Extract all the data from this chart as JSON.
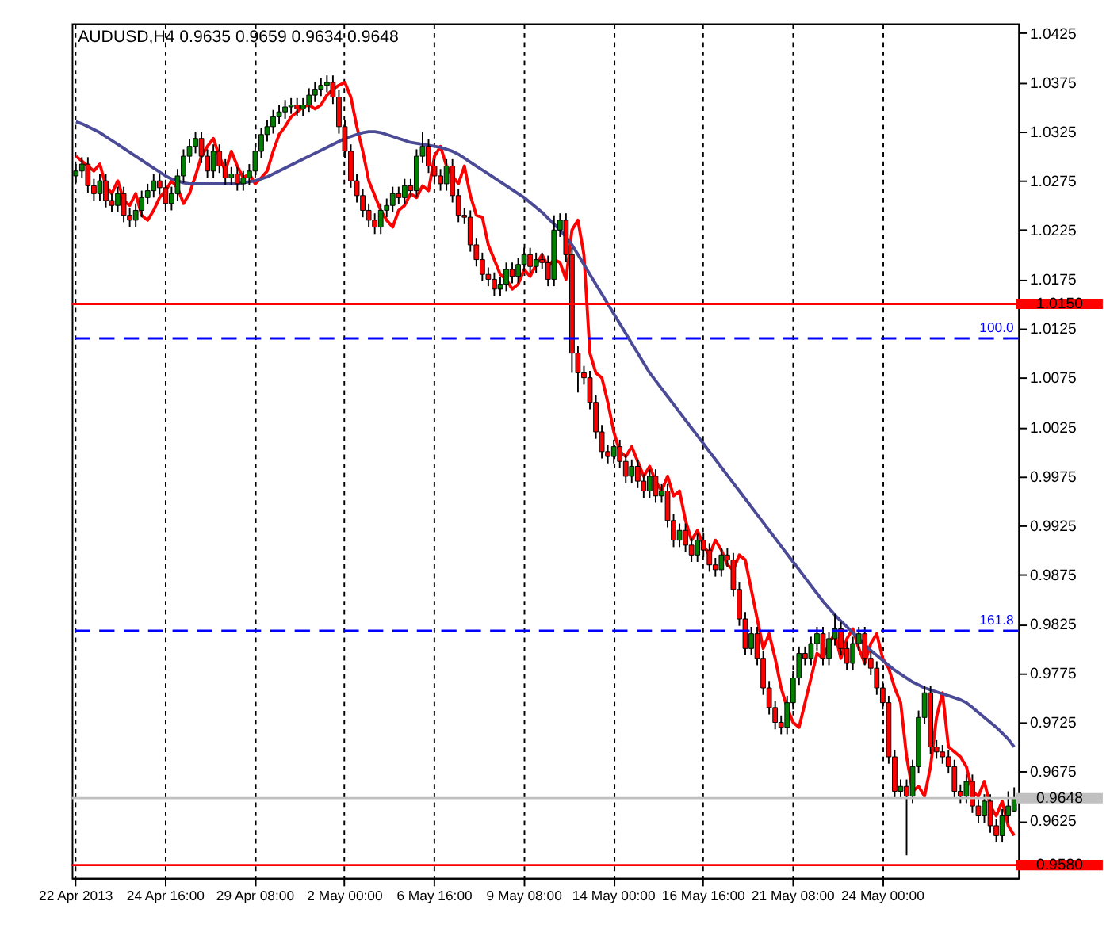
{
  "chart_data": {
    "type": "candlestick",
    "title": "AUDUSD,H4 0.9635 0.9659 0.9634 0.9648",
    "categories": [
      "22 Apr 2013",
      null,
      null,
      null,
      null,
      null,
      null,
      null,
      null,
      null,
      null,
      null,
      null,
      null,
      null,
      "24 Apr 16:00",
      null,
      null,
      null,
      null,
      null,
      null,
      null,
      null,
      null,
      null,
      null,
      null,
      null,
      null,
      "29 Apr 08:00",
      null,
      null,
      null,
      null,
      null,
      null,
      null,
      null,
      null,
      null,
      null,
      null,
      null,
      null,
      "2 May 00:00",
      null,
      null,
      null,
      null,
      null,
      null,
      null,
      null,
      null,
      null,
      null,
      null,
      null,
      null,
      "6 May 16:00",
      null,
      null,
      null,
      null,
      null,
      null,
      null,
      null,
      null,
      null,
      null,
      null,
      null,
      null,
      "9 May 08:00",
      null,
      null,
      null,
      null,
      null,
      null,
      null,
      null,
      null,
      null,
      null,
      null,
      null,
      null,
      "14 May 00:00",
      null,
      null,
      null,
      null,
      null,
      null,
      null,
      null,
      null,
      null,
      null,
      null,
      null,
      null,
      "16 May 16:00",
      null,
      null,
      null,
      null,
      null,
      null,
      null,
      null,
      null,
      null,
      null,
      null,
      null,
      null,
      "21 May 08:00",
      null,
      null,
      null,
      null,
      null,
      null,
      null,
      null,
      null,
      null,
      null,
      null,
      null,
      null,
      "24 May 00:00",
      null,
      null,
      null,
      null,
      null,
      null,
      null,
      null,
      null,
      null,
      null,
      null,
      null,
      null,
      null,
      null,
      null,
      null,
      null,
      null,
      null,
      null
    ],
    "ohlc": [
      [
        1.028,
        1.0292,
        1.0273,
        1.0285
      ],
      [
        1.0285,
        1.0299,
        1.0278,
        1.0292
      ],
      [
        1.0292,
        1.0299,
        1.0263,
        1.027
      ],
      [
        1.027,
        1.0277,
        1.0255,
        1.0262
      ],
      [
        1.0262,
        1.0282,
        1.0255,
        1.0275
      ],
      [
        1.0275,
        1.0282,
        1.0248,
        1.0255
      ],
      [
        1.0255,
        1.0262,
        1.0243,
        1.025
      ],
      [
        1.025,
        1.0269,
        1.0243,
        1.0262
      ],
      [
        1.0262,
        1.0269,
        1.0233,
        1.024
      ],
      [
        1.024,
        1.0247,
        1.0228,
        1.0235
      ],
      [
        1.0235,
        1.0252,
        1.0228,
        1.0245
      ],
      [
        1.0245,
        1.0265,
        1.0238,
        1.0258
      ],
      [
        1.0258,
        1.0272,
        1.0251,
        1.0265
      ],
      [
        1.0265,
        1.0282,
        1.0258,
        1.0275
      ],
      [
        1.0275,
        1.0282,
        1.0261,
        1.0268
      ],
      [
        1.0268,
        1.0275,
        1.0245,
        1.0252
      ],
      [
        1.0252,
        1.0269,
        1.0245,
        1.0262
      ],
      [
        1.0262,
        1.0287,
        1.0255,
        1.028
      ],
      [
        1.028,
        1.0307,
        1.0273,
        1.03
      ],
      [
        1.03,
        1.0317,
        1.0293,
        1.031
      ],
      [
        1.031,
        1.0325,
        1.0303,
        1.0318
      ],
      [
        1.0318,
        1.0325,
        1.0293,
        1.03
      ],
      [
        1.03,
        1.0307,
        1.0278,
        1.0285
      ],
      [
        1.0285,
        1.0312,
        1.0278,
        1.0305
      ],
      [
        1.0305,
        1.0312,
        1.0283,
        1.029
      ],
      [
        1.029,
        1.0297,
        1.0271,
        1.0278
      ],
      [
        1.0278,
        1.0289,
        1.0271,
        1.0282
      ],
      [
        1.0282,
        1.0289,
        1.0265,
        1.0272
      ],
      [
        1.0272,
        1.0285,
        1.0265,
        1.0278
      ],
      [
        1.0278,
        1.0292,
        1.0271,
        1.0285
      ],
      [
        1.0285,
        1.0312,
        1.0278,
        1.0305
      ],
      [
        1.0305,
        1.0329,
        1.0298,
        1.0322
      ],
      [
        1.0322,
        1.0337,
        1.0315,
        1.033
      ],
      [
        1.033,
        1.0347,
        1.0323,
        1.034
      ],
      [
        1.034,
        1.0352,
        1.0333,
        1.0345
      ],
      [
        1.0345,
        1.0357,
        1.0338,
        1.035
      ],
      [
        1.035,
        1.0359,
        1.0343,
        1.0352
      ],
      [
        1.0352,
        1.0359,
        1.0341,
        1.0348
      ],
      [
        1.0348,
        1.0359,
        1.0341,
        1.0352
      ],
      [
        1.0352,
        1.0369,
        1.0345,
        1.0362
      ],
      [
        1.0362,
        1.0375,
        1.0355,
        1.0368
      ],
      [
        1.0368,
        1.0379,
        1.0361,
        1.0372
      ],
      [
        1.0372,
        1.0382,
        1.0365,
        1.0375
      ],
      [
        1.0375,
        1.0382,
        1.0353,
        1.036
      ],
      [
        1.036,
        1.0367,
        1.0323,
        1.033
      ],
      [
        1.033,
        1.0337,
        1.0298,
        1.0305
      ],
      [
        1.0305,
        1.0312,
        1.0268,
        1.0275
      ],
      [
        1.0275,
        1.0282,
        1.0253,
        1.026
      ],
      [
        1.026,
        1.0267,
        1.0238,
        1.0245
      ],
      [
        1.0245,
        1.0252,
        1.0228,
        1.0235
      ],
      [
        1.0235,
        1.0242,
        1.0221,
        1.0228
      ],
      [
        1.0228,
        1.0252,
        1.0221,
        1.0245
      ],
      [
        1.0245,
        1.0257,
        1.0238,
        1.025
      ],
      [
        1.025,
        1.0269,
        1.0243,
        1.0262
      ],
      [
        1.0262,
        1.0269,
        1.0251,
        1.0258
      ],
      [
        1.0258,
        1.0277,
        1.0251,
        1.027
      ],
      [
        1.027,
        1.0277,
        1.0258,
        1.0265
      ],
      [
        1.0265,
        1.0307,
        1.0258,
        1.03
      ],
      [
        1.03,
        1.0325,
        1.0293,
        1.031
      ],
      [
        1.031,
        1.0317,
        1.0283,
        1.029
      ],
      [
        1.029,
        1.0297,
        1.0273,
        1.028
      ],
      [
        1.028,
        1.0287,
        1.0265,
        1.0272
      ],
      [
        1.0272,
        1.0297,
        1.0265,
        1.029
      ],
      [
        1.029,
        1.0297,
        1.0253,
        1.026
      ],
      [
        1.026,
        1.0267,
        1.0233,
        1.024
      ],
      [
        1.024,
        1.0247,
        1.0231,
        1.0238
      ],
      [
        1.0238,
        1.0245,
        1.0203,
        1.021
      ],
      [
        1.021,
        1.0217,
        1.0188,
        1.0195
      ],
      [
        1.0195,
        1.0202,
        1.0173,
        1.018
      ],
      [
        1.018,
        1.0187,
        1.0168,
        1.0175
      ],
      [
        1.0175,
        1.0182,
        1.0158,
        1.0165
      ],
      [
        1.0165,
        1.0177,
        1.0158,
        1.017
      ],
      [
        1.017,
        1.0192,
        1.0163,
        1.0185
      ],
      [
        1.0185,
        1.0192,
        1.0171,
        1.0178
      ],
      [
        1.0178,
        1.0197,
        1.0171,
        1.019
      ],
      [
        1.019,
        1.0207,
        1.0183,
        1.02
      ],
      [
        1.02,
        1.0207,
        1.0181,
        1.0188
      ],
      [
        1.0188,
        1.0202,
        1.0181,
        1.0195
      ],
      [
        1.0195,
        1.0202,
        1.0185,
        1.0192
      ],
      [
        1.0192,
        1.0199,
        1.0168,
        1.0175
      ],
      [
        1.0175,
        1.024,
        1.0168,
        1.0225
      ],
      [
        1.0225,
        1.0242,
        1.0218,
        1.0235
      ],
      [
        1.0235,
        1.0242,
        1.0193,
        1.02
      ],
      [
        1.02,
        1.0207,
        1.008,
        1.01
      ],
      [
        1.01,
        1.0107,
        1.006,
        1.008
      ],
      [
        1.008,
        1.0087,
        1.0068,
        1.0075
      ],
      [
        1.0075,
        1.0082,
        1.0043,
        1.005
      ],
      [
        1.005,
        1.0057,
        1.0013,
        1.002
      ],
      [
        1.002,
        1.0027,
        0.9993,
        1.0
      ],
      [
        1.0,
        1.0007,
        0.9988,
        0.9995
      ],
      [
        0.9995,
        1.0012,
        0.9988,
        1.0005
      ],
      [
        1.0005,
        1.0012,
        0.9983,
        0.999
      ],
      [
        0.999,
        0.9997,
        0.9968,
        0.9975
      ],
      [
        0.9975,
        0.9992,
        0.9968,
        0.9985
      ],
      [
        0.9985,
        0.9992,
        0.9963,
        0.997
      ],
      [
        0.997,
        0.9977,
        0.9953,
        0.996
      ],
      [
        0.996,
        0.9982,
        0.9953,
        0.9975
      ],
      [
        0.9975,
        0.9982,
        0.9948,
        0.9955
      ],
      [
        0.9955,
        0.9967,
        0.9948,
        0.996
      ],
      [
        0.996,
        0.9967,
        0.9923,
        0.993
      ],
      [
        0.993,
        0.9937,
        0.9903,
        0.991
      ],
      [
        0.991,
        0.9927,
        0.9903,
        0.992
      ],
      [
        0.992,
        0.9927,
        0.9898,
        0.9905
      ],
      [
        0.9905,
        0.9912,
        0.9888,
        0.9895
      ],
      [
        0.9895,
        0.9917,
        0.9888,
        0.991
      ],
      [
        0.991,
        0.9917,
        0.9893,
        0.99
      ],
      [
        0.99,
        0.9907,
        0.9878,
        0.9885
      ],
      [
        0.9885,
        0.9892,
        0.9873,
        0.988
      ],
      [
        0.988,
        0.9902,
        0.9873,
        0.9895
      ],
      [
        0.9895,
        0.9902,
        0.9883,
        0.989
      ],
      [
        0.989,
        0.9897,
        0.9853,
        0.986
      ],
      [
        0.986,
        0.9867,
        0.9823,
        0.983
      ],
      [
        0.983,
        0.9837,
        0.9793,
        0.98
      ],
      [
        0.98,
        0.9822,
        0.9793,
        0.9815
      ],
      [
        0.9815,
        0.9822,
        0.9783,
        0.979
      ],
      [
        0.979,
        0.9797,
        0.9753,
        0.976
      ],
      [
        0.976,
        0.9767,
        0.9733,
        0.974
      ],
      [
        0.974,
        0.9747,
        0.9718,
        0.9725
      ],
      [
        0.9725,
        0.9732,
        0.9713,
        0.972
      ],
      [
        0.972,
        0.9752,
        0.9713,
        0.9745
      ],
      [
        0.9745,
        0.9777,
        0.9738,
        0.977
      ],
      [
        0.977,
        0.9802,
        0.9763,
        0.9795
      ],
      [
        0.9795,
        0.9802,
        0.9783,
        0.979
      ],
      [
        0.979,
        0.9812,
        0.9783,
        0.9805
      ],
      [
        0.9805,
        0.9822,
        0.9798,
        0.9815
      ],
      [
        0.9815,
        0.9822,
        0.9783,
        0.979
      ],
      [
        0.979,
        0.9817,
        0.9783,
        0.981
      ],
      [
        0.981,
        0.9835,
        0.9803,
        0.982
      ],
      [
        0.982,
        0.9827,
        0.9793,
        0.98
      ],
      [
        0.98,
        0.9807,
        0.9778,
        0.9785
      ],
      [
        0.9785,
        0.9812,
        0.9778,
        0.9805
      ],
      [
        0.9805,
        0.9822,
        0.9798,
        0.9815
      ],
      [
        0.9815,
        0.9822,
        0.9783,
        0.979
      ],
      [
        0.979,
        0.9797,
        0.9773,
        0.978
      ],
      [
        0.978,
        0.9787,
        0.9753,
        0.976
      ],
      [
        0.976,
        0.9767,
        0.9738,
        0.9745
      ],
      [
        0.9745,
        0.9752,
        0.9683,
        0.969
      ],
      [
        0.969,
        0.9697,
        0.9648,
        0.9655
      ],
      [
        0.9655,
        0.9667,
        0.9648,
        0.966
      ],
      [
        0.966,
        0.9667,
        0.959,
        0.965
      ],
      [
        0.965,
        0.9687,
        0.9643,
        0.968
      ],
      [
        0.968,
        0.9737,
        0.9673,
        0.973
      ],
      [
        0.973,
        0.9762,
        0.9723,
        0.9755
      ],
      [
        0.9755,
        0.9762,
        0.9693,
        0.97
      ],
      [
        0.97,
        0.9707,
        0.9688,
        0.9695
      ],
      [
        0.9695,
        0.9702,
        0.9683,
        0.969
      ],
      [
        0.969,
        0.9697,
        0.9673,
        0.968
      ],
      [
        0.968,
        0.9687,
        0.9648,
        0.9655
      ],
      [
        0.9655,
        0.9662,
        0.9643,
        0.965
      ],
      [
        0.965,
        0.9672,
        0.9643,
        0.9665
      ],
      [
        0.9665,
        0.9672,
        0.9633,
        0.964
      ],
      [
        0.964,
        0.9647,
        0.9623,
        0.963
      ],
      [
        0.963,
        0.9652,
        0.9623,
        0.9645
      ],
      [
        0.9645,
        0.9652,
        0.9613,
        0.962
      ],
      [
        0.962,
        0.9627,
        0.9603,
        0.961
      ],
      [
        0.961,
        0.9637,
        0.9603,
        0.963
      ],
      [
        0.963,
        0.9655,
        0.9623,
        0.964
      ],
      [
        0.9635,
        0.9659,
        0.9634,
        0.9648
      ]
    ],
    "colors": [
      "#008000",
      "#008000",
      "#ff0000",
      "#ff0000",
      "#008000",
      "#ff0000",
      "#ff0000",
      "#008000",
      "#ff0000",
      "#ff0000",
      "#008000",
      "#008000",
      "#008000",
      "#008000",
      "#ff0000",
      "#ff0000",
      "#008000",
      "#008000",
      "#008000",
      "#008000",
      "#008000",
      "#ff0000",
      "#ff0000",
      "#008000",
      "#ff0000",
      "#ff0000",
      "#008000",
      "#ff0000",
      "#008000",
      "#008000",
      "#008000",
      "#008000",
      "#008000",
      "#008000",
      "#008000",
      "#008000",
      "#008000",
      "#ff0000",
      "#008000",
      "#008000",
      "#008000",
      "#008000",
      "#008000",
      "#ff0000",
      "#ff0000",
      "#ff0000",
      "#ff0000",
      "#ff0000",
      "#ff0000",
      "#ff0000",
      "#ff0000",
      "#008000",
      "#008000",
      "#008000",
      "#ff0000",
      "#008000",
      "#ff0000",
      "#008000",
      "#008000",
      "#ff0000",
      "#ff0000",
      "#ff0000",
      "#008000",
      "#ff0000",
      "#ff0000",
      "#ff0000",
      "#ff0000",
      "#ff0000",
      "#ff0000",
      "#ff0000",
      "#ff0000",
      "#008000",
      "#008000",
      "#ff0000",
      "#008000",
      "#008000",
      "#ff0000",
      "#008000",
      "#ff0000",
      "#ff0000",
      "#008000",
      "#008000",
      "#ff0000",
      "#ff0000",
      "#ff0000",
      "#ff0000",
      "#ff0000",
      "#ff0000",
      "#ff0000",
      "#ff0000",
      "#008000",
      "#ff0000",
      "#ff0000",
      "#008000",
      "#ff0000",
      "#ff0000",
      "#008000",
      "#ff0000",
      "#008000",
      "#ff0000",
      "#ff0000",
      "#008000",
      "#ff0000",
      "#ff0000",
      "#008000",
      "#ff0000",
      "#ff0000",
      "#ff0000",
      "#008000",
      "#ff0000",
      "#ff0000",
      "#ff0000",
      "#ff0000",
      "#008000",
      "#ff0000",
      "#ff0000",
      "#ff0000",
      "#ff0000",
      "#ff0000",
      "#008000",
      "#008000",
      "#008000",
      "#ff0000",
      "#008000",
      "#008000",
      "#ff0000",
      "#008000",
      "#008000",
      "#ff0000",
      "#ff0000",
      "#008000",
      "#008000",
      "#ff0000",
      "#ff0000",
      "#ff0000",
      "#ff0000",
      "#ff0000",
      "#ff0000",
      "#008000",
      "#ff0000",
      "#008000",
      "#008000",
      "#008000",
      "#ff0000",
      "#ff0000",
      "#ff0000",
      "#ff0000",
      "#ff0000",
      "#ff0000",
      "#008000",
      "#ff0000",
      "#ff0000",
      "#008000",
      "#ff0000",
      "#ff0000",
      "#008000",
      "#008000",
      "#008000"
    ],
    "series": [
      {
        "type": "line",
        "color": "#ff0000",
        "values": [
          1.03,
          1.0295,
          1.029,
          1.0285,
          1.0292,
          1.027,
          1.0262,
          1.0275,
          1.0255,
          1.025,
          1.0262,
          1.024,
          1.0235,
          1.0245,
          1.0258,
          1.0265,
          1.0275,
          1.0268,
          1.0252,
          1.0262,
          1.028,
          1.03,
          1.031,
          1.0318,
          1.03,
          1.0285,
          1.0305,
          1.029,
          1.0278,
          1.0282,
          1.0272,
          1.0278,
          1.0285,
          1.0305,
          1.0322,
          1.033,
          1.034,
          1.0345,
          1.035,
          1.0352,
          1.0348,
          1.0352,
          1.0362,
          1.0368,
          1.0372,
          1.0375,
          1.036,
          1.033,
          1.0305,
          1.0275,
          1.026,
          1.0245,
          1.0235,
          1.0228,
          1.0245,
          1.025,
          1.0262,
          1.0258,
          1.027,
          1.0265,
          1.03,
          1.031,
          1.029,
          1.028,
          1.0272,
          1.029,
          1.026,
          1.024,
          1.0238,
          1.021,
          1.0195,
          1.018,
          1.0175,
          1.0165,
          1.017,
          1.0185,
          1.0178,
          1.019,
          1.02,
          1.0188,
          1.0195,
          1.0192,
          1.0175,
          1.0225,
          1.0235,
          1.02,
          1.01,
          1.008,
          1.0075,
          1.005,
          1.002,
          1.0,
          0.9995,
          1.0005,
          0.999,
          0.9975,
          0.9985,
          0.997,
          0.996,
          0.9975,
          0.9955,
          0.996,
          0.993,
          0.991,
          0.992,
          0.9905,
          0.9895,
          0.991,
          0.99,
          0.9885,
          0.988,
          0.9895,
          0.989,
          0.986,
          0.983,
          0.98,
          0.9815,
          0.979,
          0.976,
          0.974,
          0.9725,
          0.972,
          0.9745,
          0.977,
          0.9795,
          0.979,
          0.9805,
          0.9815,
          0.979,
          0.981,
          0.982,
          0.98,
          0.9785,
          0.9805,
          0.9815,
          0.979,
          0.978,
          0.976,
          0.9745,
          0.969,
          0.9655,
          0.966,
          0.965,
          0.968,
          0.973,
          0.9755,
          0.97,
          0.9695,
          0.969,
          0.968,
          0.9655,
          0.965,
          0.9665,
          0.964,
          0.963,
          0.9645,
          0.962,
          0.961
        ]
      },
      {
        "type": "line",
        "color": "#4a4a96",
        "values": [
          1.0335,
          1.0333,
          1.033,
          1.0327,
          1.0324,
          1.032,
          1.0316,
          1.0312,
          1.0308,
          1.0304,
          1.03,
          1.0296,
          1.0292,
          1.0288,
          1.0284,
          1.028,
          1.0277,
          1.0275,
          1.0273,
          1.0272,
          1.0272,
          1.0272,
          1.0272,
          1.0272,
          1.0272,
          1.0272,
          1.0272,
          1.0272,
          1.0273,
          1.0274,
          1.0275,
          1.0277,
          1.0279,
          1.0282,
          1.0285,
          1.0288,
          1.0291,
          1.0294,
          1.0297,
          1.03,
          1.0303,
          1.0306,
          1.0309,
          1.0312,
          1.0315,
          1.0318,
          1.032,
          1.0322,
          1.0324,
          1.0325,
          1.0325,
          1.0324,
          1.0322,
          1.032,
          1.0318,
          1.0316,
          1.0314,
          1.0313,
          1.0312,
          1.0311,
          1.031,
          1.0309,
          1.0307,
          1.0305,
          1.0302,
          1.0298,
          1.0294,
          1.029,
          1.0286,
          1.0282,
          1.0278,
          1.0274,
          1.027,
          1.0266,
          1.0262,
          1.0258,
          1.0253,
          1.0248,
          1.0243,
          1.0237,
          1.0231,
          1.0225,
          1.0218,
          1.021,
          1.02,
          1.019,
          1.018,
          1.017,
          1.016,
          1.015,
          1.014,
          1.013,
          1.012,
          1.011,
          1.01,
          1.009,
          1.008,
          1.0072,
          1.0064,
          1.0056,
          1.0048,
          1.004,
          1.0032,
          1.0024,
          1.0016,
          1.0008,
          1.0,
          0.9992,
          0.9984,
          0.9976,
          0.9968,
          0.996,
          0.9952,
          0.9944,
          0.9936,
          0.9928,
          0.992,
          0.9912,
          0.9904,
          0.9896,
          0.9888,
          0.988,
          0.9872,
          0.9864,
          0.9856,
          0.9848,
          0.9841,
          0.9834,
          0.9828,
          0.9822,
          0.9816,
          0.981,
          0.9804,
          0.9798,
          0.9793,
          0.9788,
          0.9783,
          0.9778,
          0.9774,
          0.977,
          0.9766,
          0.9763,
          0.976,
          0.9758,
          0.9756,
          0.9754,
          0.9752,
          0.975,
          0.9748,
          0.9745,
          0.974,
          0.9735,
          0.973,
          0.9725,
          0.972,
          0.9714,
          0.9708,
          0.97
        ]
      }
    ],
    "ylim": [
      0.9567,
      1.0435
    ],
    "yticks": [
      1.0425,
      1.0375,
      1.0325,
      1.0275,
      1.0225,
      1.0175,
      1.0125,
      1.0075,
      1.0025,
      0.9975,
      0.9925,
      0.9875,
      0.9825,
      0.9775,
      0.9725,
      0.9675,
      0.9625
    ],
    "grid": "x",
    "ref_lines": [
      {
        "axis": "y",
        "value": 1.015,
        "label": "1.0150",
        "color": "#ff0000",
        "line_style": "solid"
      },
      {
        "axis": "y",
        "value": 1.0115,
        "color": "#0000ff",
        "line_style": "dashed"
      },
      {
        "axis": "y",
        "value": 0.9818,
        "color": "#0000ff",
        "line_style": "dashed"
      },
      {
        "axis": "y",
        "value": 0.9648,
        "label": "0.9648",
        "color": "#c0c0c0",
        "line_style": "solid"
      },
      {
        "axis": "y",
        "value": 0.958,
        "label": "0.9580",
        "color": "#ff0000",
        "line_style": "solid"
      }
    ],
    "annotations": [
      {
        "text": "100.0",
        "y": 1.0115
      },
      {
        "text": "161.8",
        "y": 0.9818
      }
    ]
  }
}
